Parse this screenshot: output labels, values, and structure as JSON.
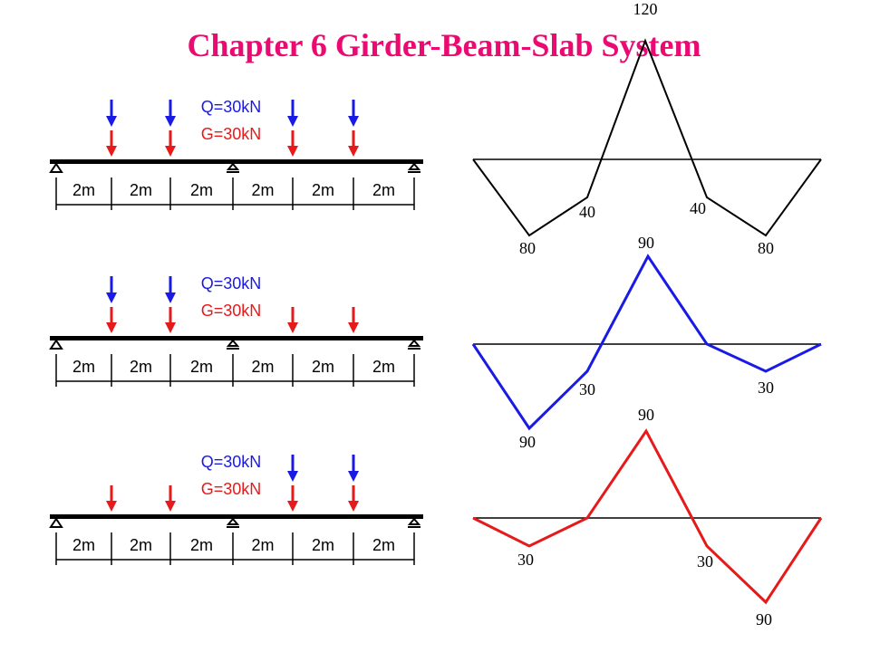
{
  "title": "Chapter 6 Girder-Beam-Slab System",
  "panels": [
    {
      "q_label": "Q=30kN",
      "g_label": "G=30kN",
      "spans": [
        "2m",
        "2m",
        "2m",
        "2m",
        "2m",
        "2m"
      ],
      "moment_labels": [
        "120",
        "40",
        "40",
        "80",
        "80"
      ]
    },
    {
      "q_label": "Q=30kN",
      "g_label": "G=30kN",
      "spans": [
        "2m",
        "2m",
        "2m",
        "2m",
        "2m",
        "2m"
      ],
      "moment_labels": [
        "90",
        "30",
        "30",
        "90"
      ]
    },
    {
      "q_label": "Q=30kN",
      "g_label": "G=30kN",
      "spans": [
        "2m",
        "2m",
        "2m",
        "2m",
        "2m",
        "2m"
      ],
      "moment_labels": [
        "90",
        "30",
        "30",
        "90"
      ]
    }
  ]
}
